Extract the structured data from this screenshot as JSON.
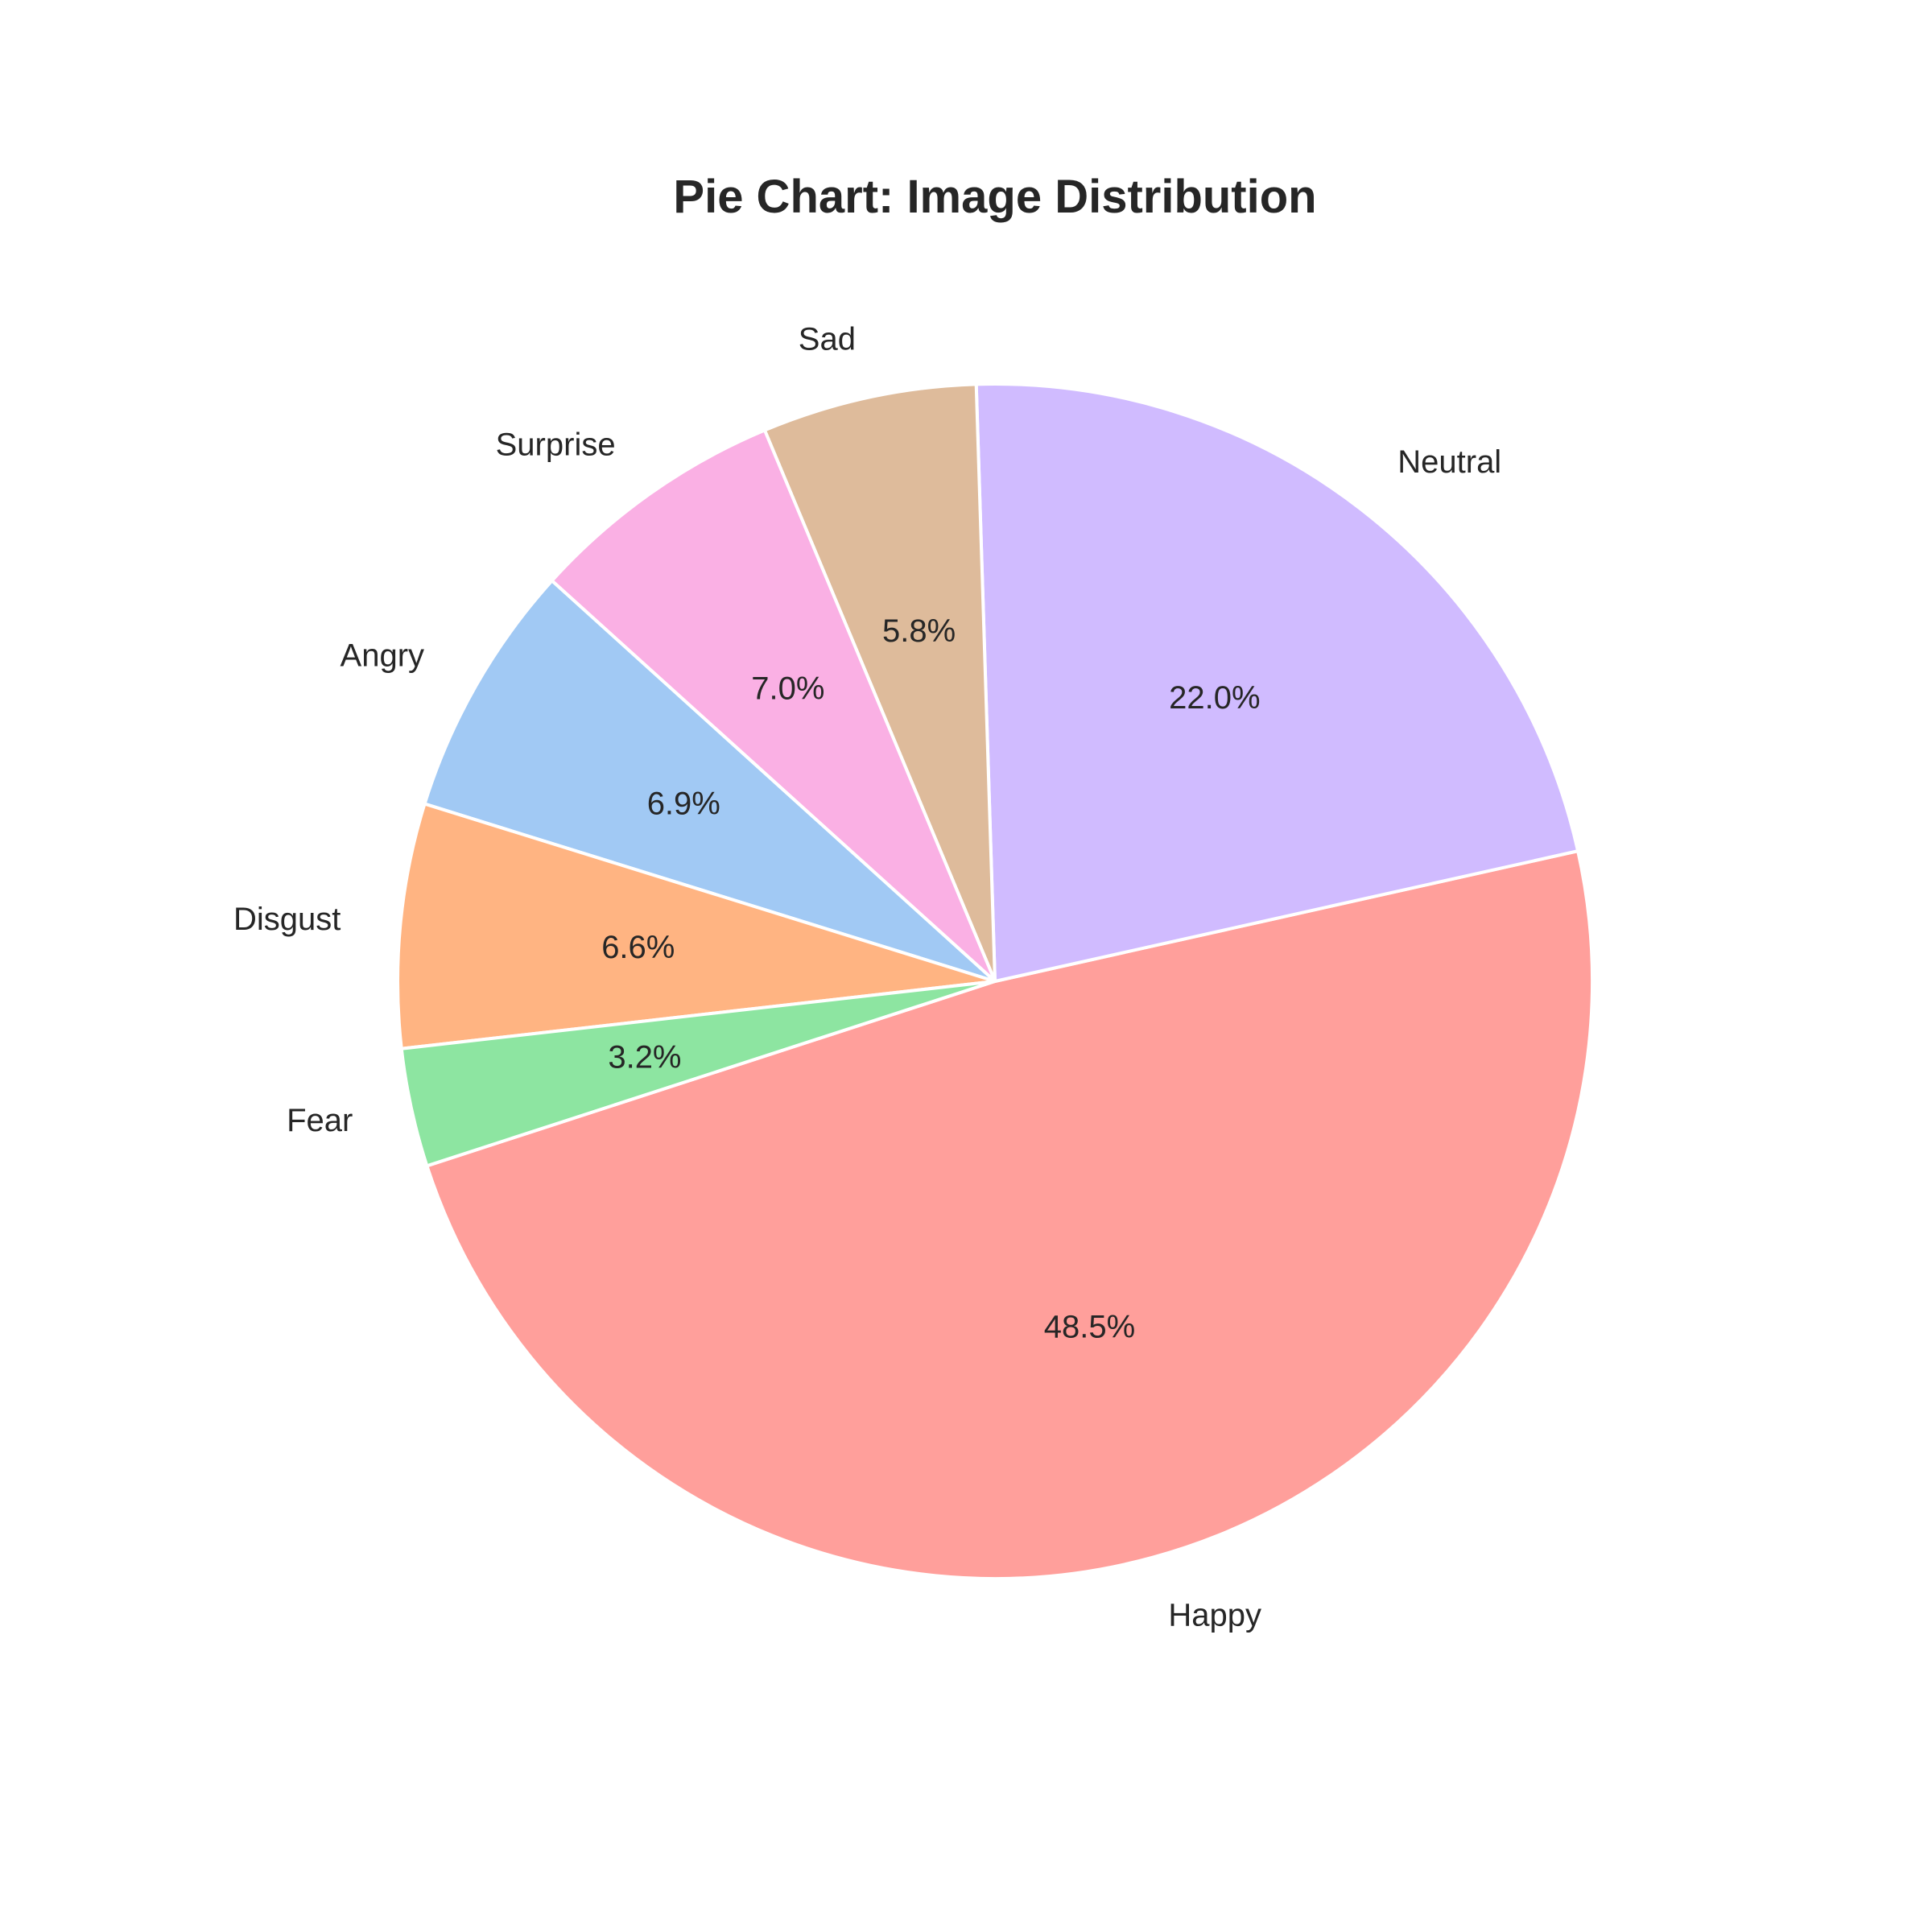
{
  "chart_data": {
    "type": "pie",
    "title": "Pie Chart: Image Distribution",
    "categories": [
      "Happy",
      "Neutral",
      "Sad",
      "Surprise",
      "Angry",
      "Disgust",
      "Fear"
    ],
    "values": [
      48.5,
      22.0,
      5.8,
      7.0,
      6.9,
      6.6,
      3.2
    ],
    "percent_labels": [
      "48.5%",
      "22.0%",
      "5.8%",
      "7.0%",
      "6.9%",
      "6.6%",
      "3.2%"
    ],
    "colors": [
      "#ff9f9b",
      "#d0bbff",
      "#debb9b",
      "#fab0e4",
      "#a1c9f4",
      "#ffb482",
      "#8de5a1"
    ],
    "start_angle_deg": 198,
    "direction": "counterclockwise"
  }
}
